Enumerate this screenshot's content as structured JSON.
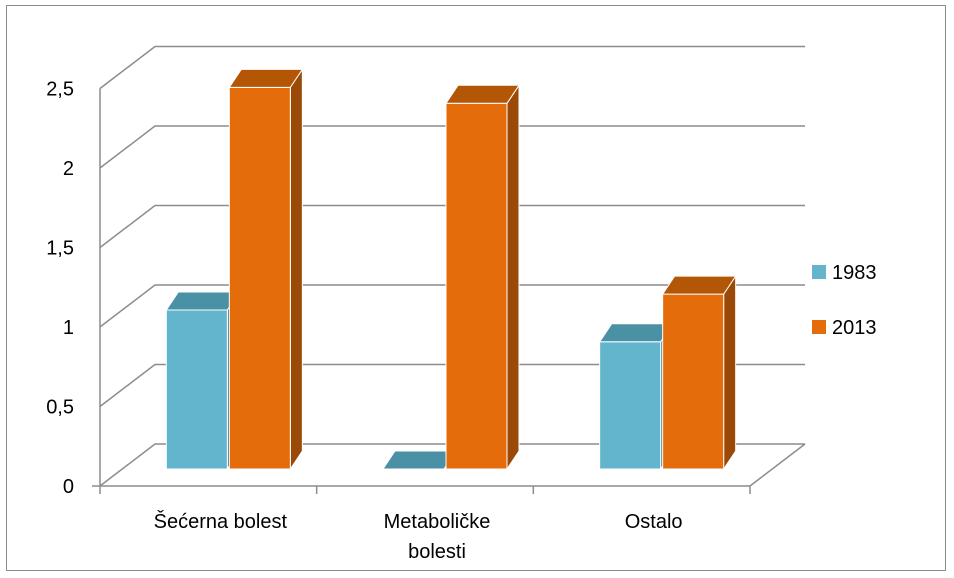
{
  "chart_data": {
    "type": "bar",
    "style": "3d-clustered-column",
    "categories": [
      {
        "lines": [
          "Šećerna bolest"
        ]
      },
      {
        "lines": [
          "Metaboličke",
          "bolesti"
        ]
      },
      {
        "lines": [
          "Ostalo"
        ]
      }
    ],
    "series": [
      {
        "name": "1983",
        "values": [
          1.0,
          0,
          0.8
        ],
        "color": "#63B5CE",
        "side_color": "#3E8196",
        "top_color": "#4A91A6"
      },
      {
        "name": "2013",
        "values": [
          2.4,
          2.3,
          1.1
        ],
        "color": "#E46C0A",
        "side_color": "#9A4A06",
        "top_color": "#B35606"
      }
    ],
    "y_ticks": [
      "0",
      "0,5",
      "1",
      "1,5",
      "2",
      "2,5"
    ],
    "ylim": [
      0,
      2.5
    ],
    "grid": true,
    "legend_position": "right",
    "title": "",
    "xlabel": "",
    "ylabel": ""
  }
}
